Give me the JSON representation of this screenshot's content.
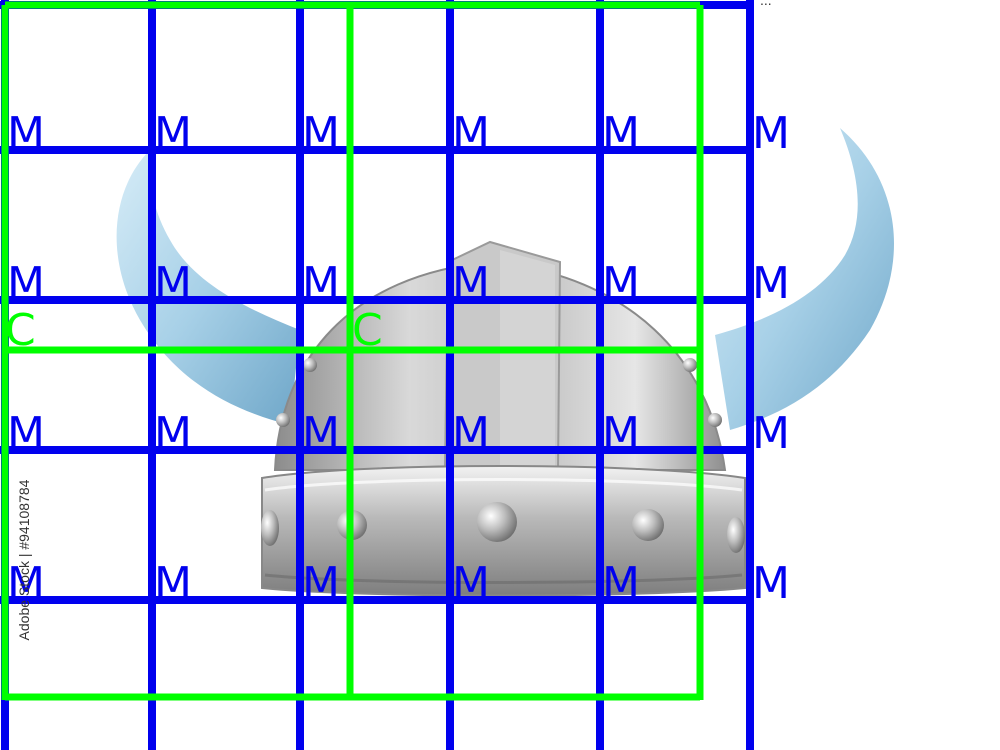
{
  "image": {
    "subject": "viking-helmet",
    "background_color": "#ffffff",
    "colors": {
      "horn": "#a9cfe6",
      "helmet_metal": "#b7b7b7",
      "grid_blue": "#0000ee",
      "grid_green": "#00ff00"
    }
  },
  "grid_labels": {
    "blue": "M",
    "green": "C"
  },
  "watermark": {
    "side_text": "Adobe Stock | #94108784",
    "top_fragment": "..."
  }
}
